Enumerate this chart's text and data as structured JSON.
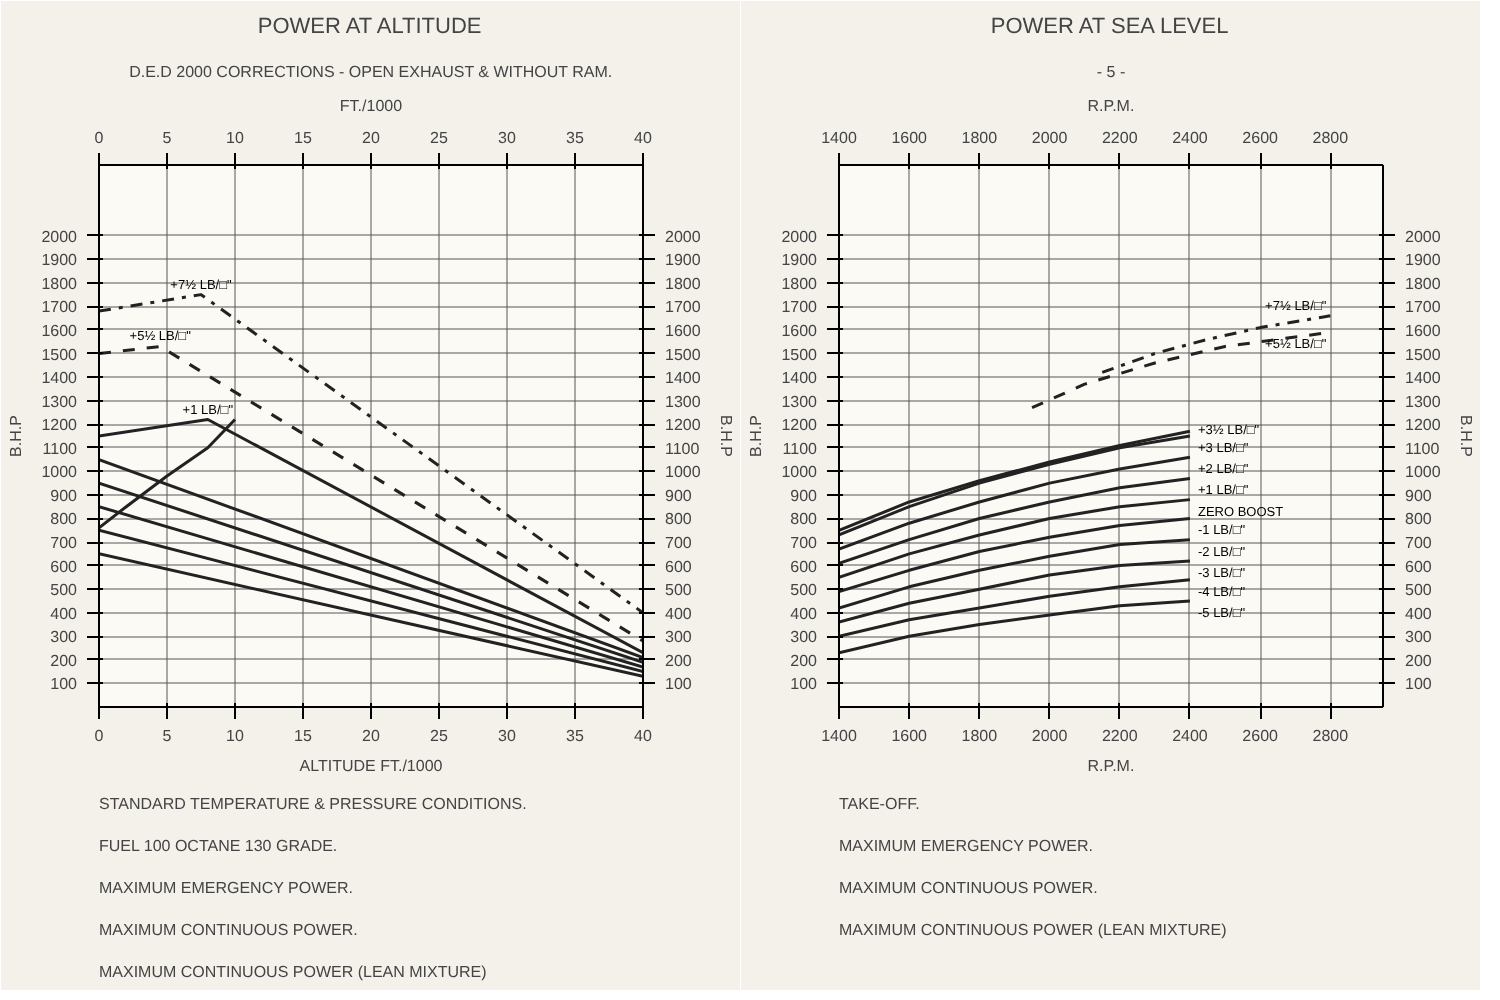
{
  "chart_data": [
    {
      "type": "line",
      "title": "POWER AT ALTITUDE",
      "subtitle": "D.E.D 2000 CORRECTIONS - OPEN EXHAUST & WITHOUT RAM.",
      "xlabel": "ALTITUDE FT./1000",
      "x2label": "FT./1000",
      "ylabel": "B.H.P",
      "y2label": "B.H.P",
      "xlim": [
        0,
        40
      ],
      "x2lim": [
        0,
        40
      ],
      "ylim": [
        0,
        2300
      ],
      "y2lim": [
        0,
        2300
      ],
      "xticks": [
        0,
        5,
        10,
        15,
        20,
        25,
        30,
        35,
        40
      ],
      "x2ticks": [
        0,
        5,
        10,
        15,
        20,
        25,
        30,
        35,
        40
      ],
      "yticks": [
        100,
        200,
        300,
        400,
        500,
        600,
        700,
        800,
        900,
        1000,
        1100,
        1200,
        1300,
        1400,
        1500,
        1600,
        1700,
        1800,
        1900,
        2000
      ],
      "y2ticks": [
        100,
        200,
        300,
        400,
        500,
        600,
        700,
        800,
        900,
        1000,
        1100,
        1200,
        1300,
        1400,
        1500,
        1600,
        1700,
        1800,
        1900,
        2000
      ],
      "grid": true,
      "annotations": [
        "STANDARD TEMPERATURE & PRESSURE CONDITIONS.",
        "FUEL 100 OCTANE 130 GRADE.",
        "MAXIMUM EMERGENCY POWER.",
        "MAXIMUM CONTINUOUS POWER.",
        "MAXIMUM CONTINUOUS POWER (LEAN MIXTURE)"
      ],
      "series": [
        {
          "name": "+7½ LB/□\"",
          "color": "#222222",
          "line_style": "dashdot",
          "x": [
            0,
            7.5,
            40
          ],
          "values": [
            1680,
            1750,
            400
          ]
        },
        {
          "name": "+5½ LB/□\"",
          "color": "#222222",
          "line_style": "dashed",
          "x": [
            0,
            4.5,
            40
          ],
          "values": [
            1500,
            1530,
            280
          ]
        },
        {
          "name": "+1 LB/□\"",
          "color": "#222222",
          "line_style": "solid",
          "x": [
            0,
            8,
            40
          ],
          "values": [
            1150,
            1220,
            230
          ]
        },
        {
          "color": "#222222",
          "line_style": "solid",
          "x": [
            0,
            40
          ],
          "values": [
            1050,
            210
          ]
        },
        {
          "color": "#222222",
          "line_style": "solid",
          "x": [
            0,
            40
          ],
          "values": [
            950,
            190
          ]
        },
        {
          "color": "#222222",
          "line_style": "solid",
          "x": [
            0,
            40
          ],
          "values": [
            850,
            170
          ]
        },
        {
          "color": "#222222",
          "line_style": "solid",
          "x": [
            0,
            40
          ],
          "values": [
            750,
            150
          ]
        },
        {
          "color": "#222222",
          "line_style": "solid",
          "x": [
            0,
            40
          ],
          "values": [
            650,
            130
          ]
        },
        {
          "color": "#222222",
          "line_style": "solid",
          "x": [
            0,
            2,
            5,
            8,
            10
          ],
          "values": [
            760,
            850,
            980,
            1100,
            1220
          ]
        }
      ]
    },
    {
      "type": "line",
      "title": "POWER AT SEA LEVEL",
      "subtitle": "- 5 -",
      "xlabel": "R.P.M.",
      "x2label": "R.P.M.",
      "ylabel": "B.H.P",
      "y2label": "B.H.P",
      "xlim": [
        1400,
        2950
      ],
      "x2lim": [
        1400,
        2950
      ],
      "ylim": [
        0,
        2300
      ],
      "y2lim": [
        0,
        2300
      ],
      "xticks": [
        1400,
        1600,
        1800,
        2000,
        2200,
        2400,
        2600,
        2800
      ],
      "x2ticks": [
        1400,
        1600,
        1800,
        2000,
        2200,
        2400,
        2600,
        2800
      ],
      "yticks": [
        100,
        200,
        300,
        400,
        500,
        600,
        700,
        800,
        900,
        1000,
        1100,
        1200,
        1300,
        1400,
        1500,
        1600,
        1700,
        1800,
        1900,
        2000
      ],
      "y2ticks": [
        100,
        200,
        300,
        400,
        500,
        600,
        700,
        800,
        900,
        1000,
        1100,
        1200,
        1300,
        1400,
        1500,
        1600,
        1700,
        1800,
        1900,
        2000
      ],
      "grid": true,
      "annotations": [
        "TAKE-OFF.",
        "MAXIMUM EMERGENCY POWER.",
        "MAXIMUM CONTINUOUS POWER.",
        "MAXIMUM CONTINUOUS POWER (LEAN MIXTURE)"
      ],
      "series": [
        {
          "name": "+7½ LB/□\"",
          "color": "#222222",
          "line_style": "dashdot",
          "x": [
            2150,
            2300,
            2450,
            2600,
            2800
          ],
          "values": [
            1420,
            1500,
            1560,
            1610,
            1660
          ]
        },
        {
          "name": "+5½ LB/□\"",
          "color": "#222222",
          "line_style": "dashed",
          "x": [
            1950,
            2100,
            2300,
            2500,
            2800
          ],
          "values": [
            1270,
            1370,
            1460,
            1530,
            1590
          ]
        },
        {
          "name": "+3½ LB/□\"",
          "color": "#222222",
          "line_style": "solid",
          "x": [
            1400,
            1600,
            1800,
            2000,
            2200,
            2400
          ],
          "values": [
            750,
            870,
            960,
            1040,
            1110,
            1170
          ]
        },
        {
          "name": "+3 LB/□\"",
          "color": "#222222",
          "line_style": "solid",
          "x": [
            1400,
            1600,
            1800,
            2000,
            2200,
            2400
          ],
          "values": [
            730,
            850,
            950,
            1030,
            1100,
            1150
          ]
        },
        {
          "name": "+2 LB/□\"",
          "color": "#222222",
          "line_style": "solid",
          "x": [
            1400,
            1600,
            1800,
            2000,
            2200,
            2400
          ],
          "values": [
            670,
            780,
            870,
            950,
            1010,
            1060
          ]
        },
        {
          "name": "+1 LB/□\"",
          "color": "#222222",
          "line_style": "solid",
          "x": [
            1400,
            1600,
            1800,
            2000,
            2200,
            2400
          ],
          "values": [
            610,
            710,
            800,
            870,
            930,
            970
          ]
        },
        {
          "name": "ZERO BOOST",
          "color": "#222222",
          "line_style": "solid",
          "x": [
            1400,
            1600,
            1800,
            2000,
            2200,
            2400
          ],
          "values": [
            550,
            650,
            730,
            800,
            850,
            880
          ]
        },
        {
          "name": "-1 LB/□\"",
          "color": "#222222",
          "line_style": "solid",
          "x": [
            1400,
            1600,
            1800,
            2000,
            2200,
            2400
          ],
          "values": [
            490,
            580,
            660,
            720,
            770,
            800
          ]
        },
        {
          "name": "-2 LB/□\"",
          "color": "#222222",
          "line_style": "solid",
          "x": [
            1400,
            1600,
            1800,
            2000,
            2200,
            2400
          ],
          "values": [
            420,
            510,
            580,
            640,
            690,
            710
          ]
        },
        {
          "name": "-3 LB/□\"",
          "color": "#222222",
          "line_style": "solid",
          "x": [
            1400,
            1600,
            1800,
            2000,
            2200,
            2400
          ],
          "values": [
            360,
            440,
            500,
            560,
            600,
            620
          ]
        },
        {
          "name": "-4 LB/□\"",
          "color": "#222222",
          "line_style": "solid",
          "x": [
            1400,
            1600,
            1800,
            2000,
            2200,
            2400
          ],
          "values": [
            300,
            370,
            420,
            470,
            510,
            540
          ]
        },
        {
          "name": "-5 LB/□\"",
          "color": "#222222",
          "line_style": "solid",
          "x": [
            1400,
            1600,
            1800,
            2000,
            2200,
            2400
          ],
          "values": [
            230,
            300,
            350,
            390,
            430,
            450
          ]
        }
      ]
    }
  ]
}
